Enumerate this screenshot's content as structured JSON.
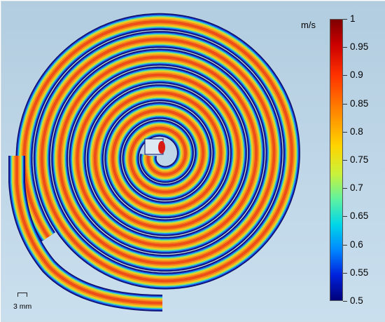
{
  "figure": {
    "unit": "m/s",
    "colorbar_ticks": [
      "1",
      "0.95",
      "0.9",
      "0.85",
      "0.8",
      "0.75",
      "0.7",
      "0.65",
      "0.6",
      "0.55",
      "0.5"
    ],
    "scale_bar_label": "3 mm"
  }
}
